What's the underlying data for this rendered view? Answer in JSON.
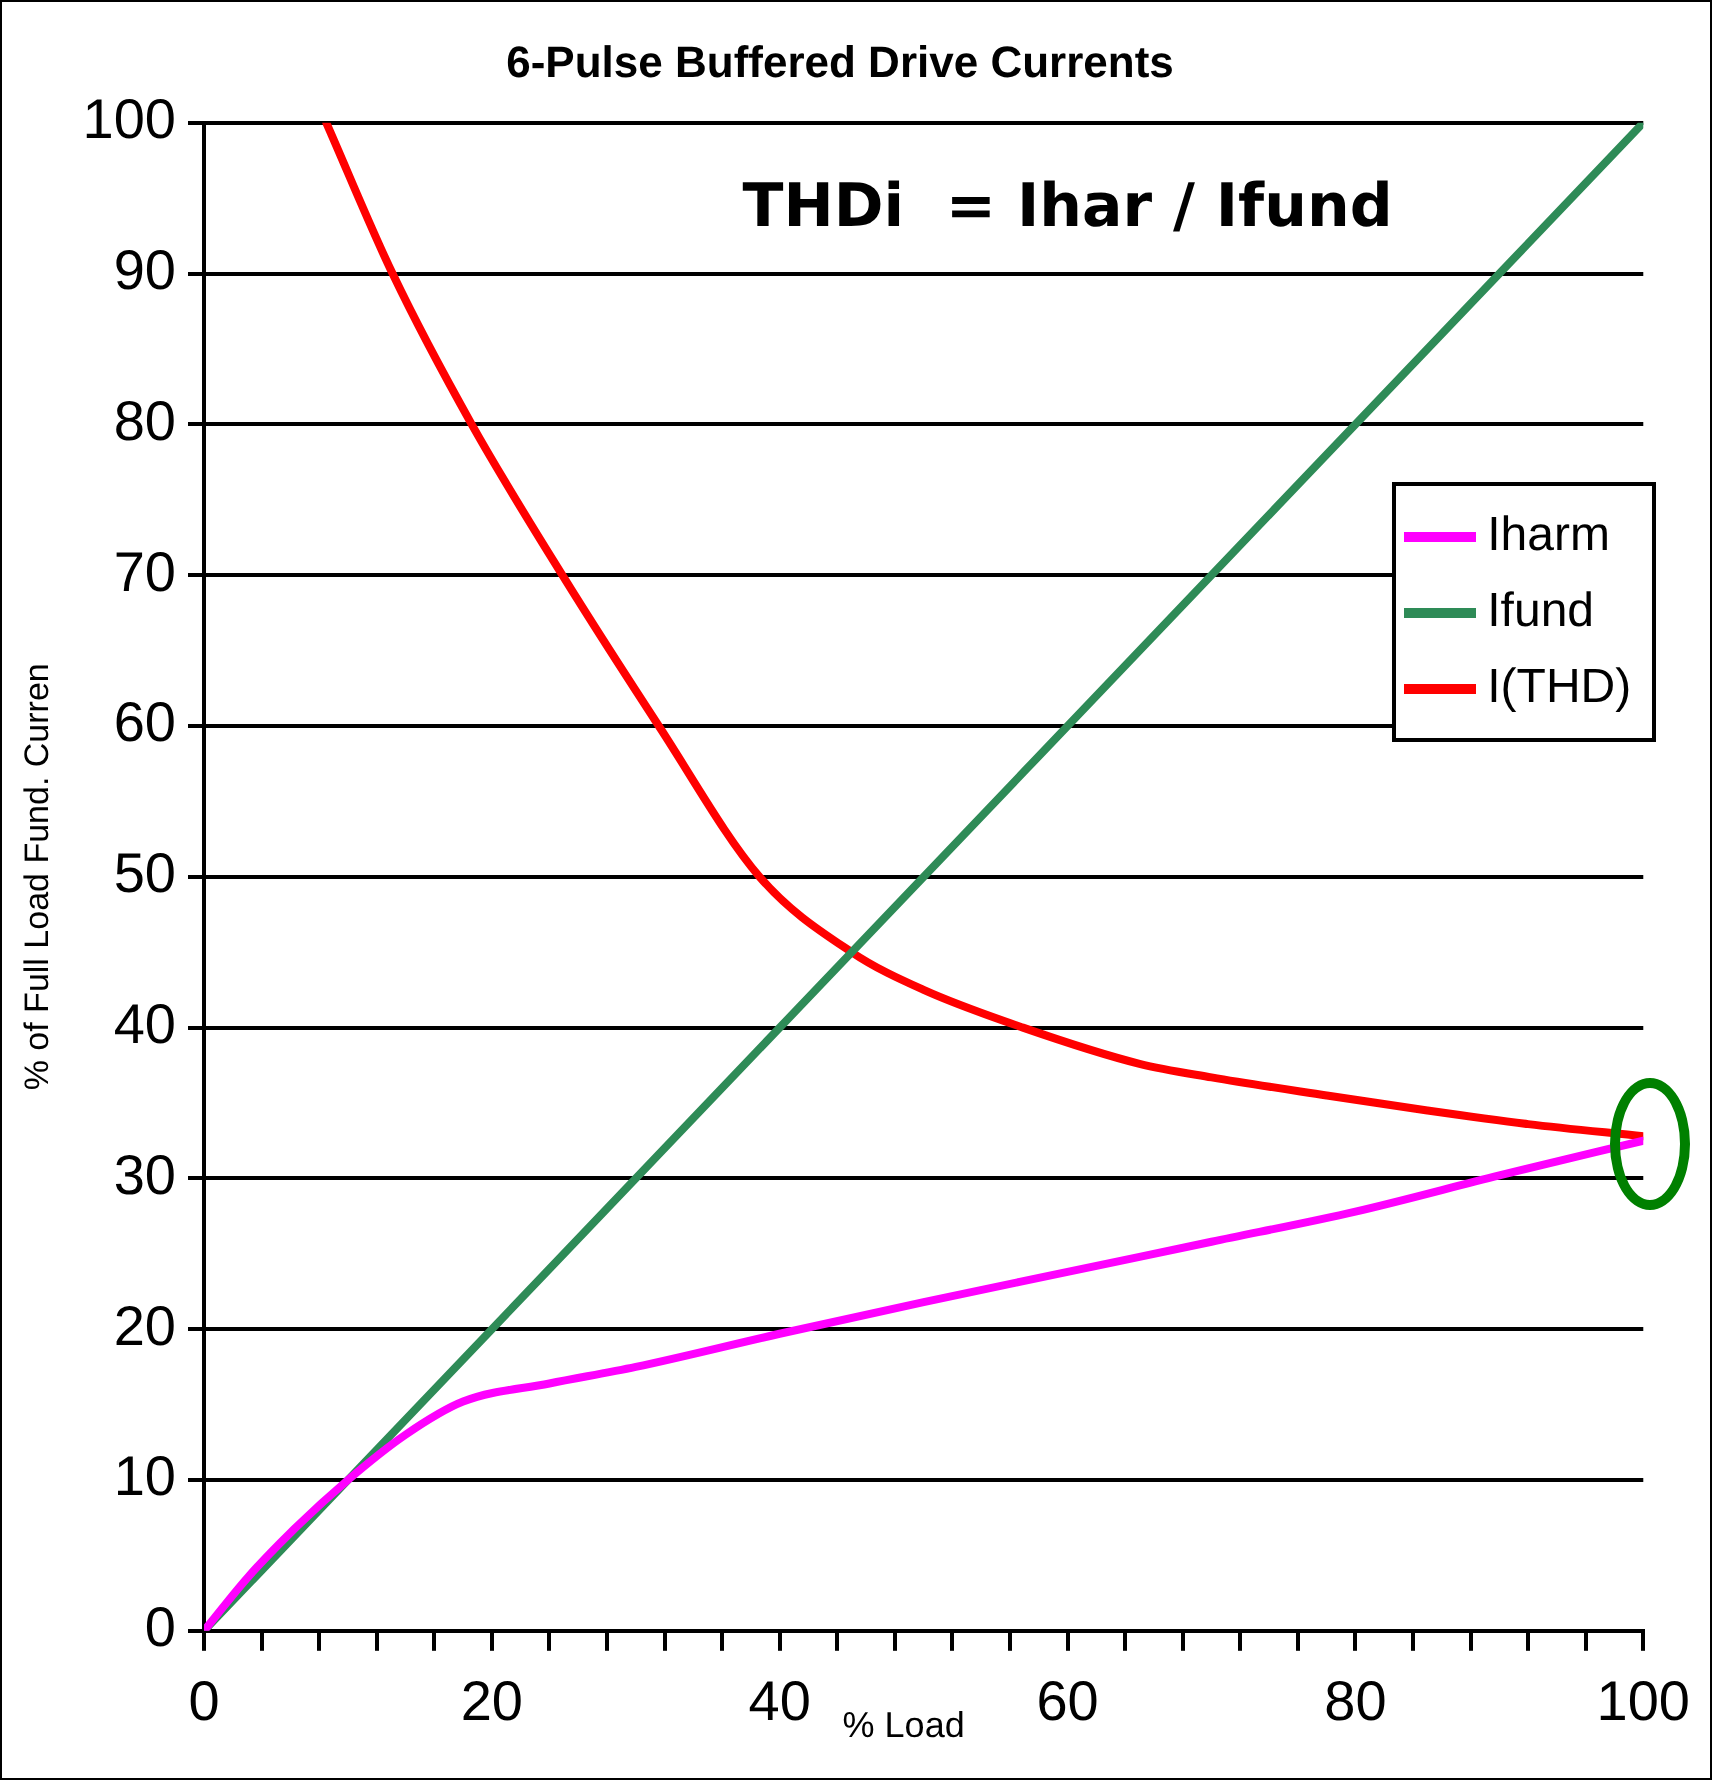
{
  "chart_data": {
    "type": "line",
    "title": "6-Pulse Buffered Drive Currents",
    "xlabel": "% Load",
    "ylabel": "% of Full Load Fund. Curren",
    "annotations": [
      "THDi  = Ihar / Ifund"
    ],
    "xlim": [
      0,
      100
    ],
    "xticks": [
      0,
      {
        "value": 4,
        "label": null
      },
      {
        "value": 8,
        "label": null
      },
      {
        "value": 12,
        "label": null
      },
      {
        "value": 16,
        "label": null
      },
      20,
      {
        "value": 24,
        "label": null
      },
      {
        "value": 28,
        "label": null
      },
      {
        "value": 32,
        "label": null
      },
      {
        "value": 36,
        "label": null
      },
      40,
      {
        "value": 44,
        "label": null
      },
      {
        "value": 48,
        "label": null
      },
      {
        "value": 52,
        "label": null
      },
      {
        "value": 56,
        "label": null
      },
      60,
      {
        "value": 64,
        "label": null
      },
      {
        "value": 68,
        "label": null
      },
      {
        "value": 72,
        "label": null
      },
      {
        "value": 76,
        "label": null
      },
      80,
      {
        "value": 84,
        "label": null
      },
      {
        "value": 88,
        "label": null
      },
      {
        "value": 92,
        "label": null
      },
      {
        "value": 96,
        "label": null
      },
      100
    ],
    "ylim": [
      0,
      100
    ],
    "yticks": [
      0,
      10,
      20,
      30,
      40,
      50,
      60,
      70,
      80,
      90,
      100
    ],
    "grid": "y",
    "legend": "right",
    "marker": "none",
    "line_style": "solid",
    "series": [
      {
        "name": "Iharm",
        "color": "#ff00ff",
        "x": [
          0,
          3,
          6,
          10,
          14,
          18,
          24,
          30,
          40,
          50,
          60,
          70,
          80,
          90,
          100
        ],
        "values": [
          0,
          3.5,
          6.5,
          10,
          13,
          15.2,
          16.4,
          17.5,
          19.7,
          21.8,
          23.8,
          25.8,
          27.8,
          30.2,
          32.5
        ]
      },
      {
        "name": "Ifund",
        "color": "#2e8b57",
        "x": [
          0,
          100
        ],
        "values": [
          0,
          100
        ]
      },
      {
        "name": "I(THD)",
        "color": "#ff0000",
        "x": [
          8.5,
          13.1,
          18.6,
          24.9,
          31.6,
          38.6,
          45,
          50,
          56.9,
          65,
          70,
          78,
          85,
          92,
          100
        ],
        "values": [
          100,
          90,
          80,
          70,
          60,
          50,
          45,
          42.5,
          40,
          37.6,
          36.7,
          35.5,
          34.5,
          33.6,
          32.8
        ]
      }
    ]
  }
}
